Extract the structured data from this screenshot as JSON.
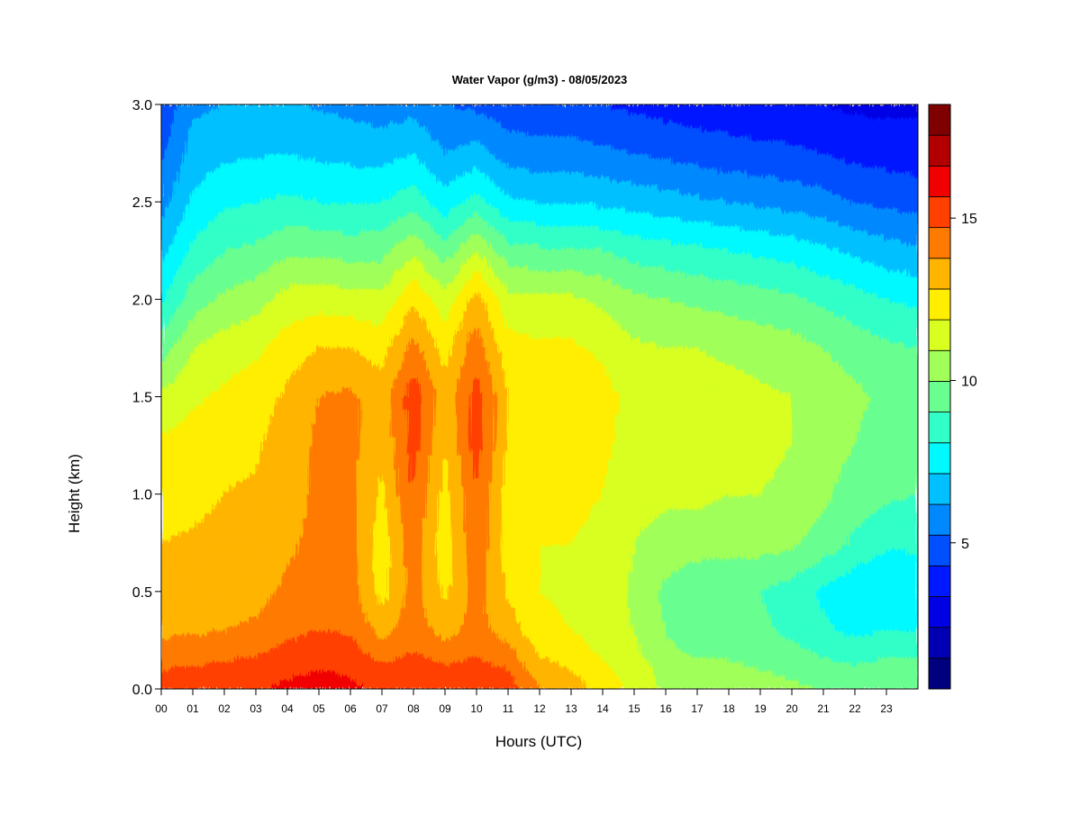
{
  "chart_data": {
    "type": "heatmap",
    "title": "Water Vapor (g/m3) - 08/05/2023",
    "xlabel": "Hours (UTC)",
    "ylabel": "Height (km)",
    "xlim": [
      0,
      24
    ],
    "ylim": [
      0,
      3.0
    ],
    "x_ticks": [
      "00",
      "01",
      "02",
      "03",
      "04",
      "05",
      "06",
      "07",
      "08",
      "09",
      "10",
      "11",
      "12",
      "13",
      "14",
      "15",
      "16",
      "17",
      "18",
      "19",
      "20",
      "21",
      "22",
      "23"
    ],
    "y_ticks": [
      "0.0",
      "0.5",
      "1.0",
      "1.5",
      "2.0",
      "2.5",
      "3.0"
    ],
    "colorbar": {
      "min": 1,
      "max": 18,
      "ticks": [
        "5",
        "10",
        "15"
      ],
      "levels": [
        1,
        2,
        3,
        4,
        5,
        6,
        7,
        8,
        9,
        10,
        11,
        12,
        13,
        14,
        15,
        16,
        17,
        18
      ],
      "colors": [
        "#00007f",
        "#0000b2",
        "#0000e5",
        "#0018ff",
        "#0050ff",
        "#0088ff",
        "#00c0ff",
        "#00f8ff",
        "#30ffc8",
        "#68ff90",
        "#a0ff58",
        "#d8ff20",
        "#ffee00",
        "#ffb400",
        "#ff7a00",
        "#ff4000",
        "#f00000",
        "#b20000",
        "#7f0000"
      ]
    },
    "grid": false,
    "legend": "colorbar-right",
    "x_hours": [
      0,
      1,
      2,
      3,
      4,
      5,
      6,
      7,
      8,
      9,
      10,
      11,
      12,
      13,
      14,
      15,
      16,
      17,
      18,
      19,
      20,
      21,
      22,
      23,
      24
    ],
    "y_heights_km": [
      0,
      0.1,
      0.2,
      0.3,
      0.5,
      0.75,
      1.0,
      1.25,
      1.5,
      1.75,
      2.0,
      2.25,
      2.5,
      2.75,
      3.0
    ],
    "values_g_m3": [
      [
        16.0,
        15.0,
        14.3,
        13.8,
        13.2,
        13.0,
        12.6,
        12.2,
        11.2,
        9.5,
        7.8,
        6.6,
        5.6,
        4.8,
        4.2
      ],
      [
        15.8,
        15.1,
        14.4,
        13.9,
        13.4,
        13.1,
        12.8,
        12.5,
        11.8,
        11.0,
        9.5,
        8.2,
        7.2,
        6.4,
        5.8
      ],
      [
        15.9,
        15.3,
        14.6,
        14.0,
        13.5,
        13.2,
        13.0,
        12.8,
        12.2,
        11.5,
        10.2,
        9.0,
        7.8,
        6.8,
        6.0
      ],
      [
        15.9,
        15.4,
        14.8,
        14.2,
        13.6,
        13.3,
        13.1,
        12.9,
        12.5,
        11.8,
        10.6,
        9.2,
        8.0,
        6.9,
        6.0
      ],
      [
        16.2,
        15.8,
        15.2,
        14.8,
        14.2,
        13.8,
        13.6,
        13.4,
        13.2,
        12.5,
        11.4,
        9.8,
        8.2,
        7.0,
        6.1
      ],
      [
        16.3,
        16.0,
        15.5,
        15.0,
        14.6,
        14.3,
        14.2,
        14.2,
        14.0,
        13.0,
        11.6,
        9.8,
        8.0,
        6.8,
        5.9
      ],
      [
        16.2,
        15.9,
        15.4,
        14.9,
        14.5,
        14.3,
        14.3,
        14.3,
        14.2,
        13.0,
        11.4,
        9.6,
        7.9,
        6.7,
        5.7
      ],
      [
        15.8,
        15.2,
        14.4,
        13.6,
        12.6,
        12.4,
        12.8,
        13.2,
        13.4,
        12.6,
        11.3,
        9.7,
        8.0,
        6.6,
        5.5
      ],
      [
        16.0,
        15.6,
        15.0,
        14.6,
        14.4,
        14.6,
        15.0,
        15.4,
        15.6,
        14.4,
        12.8,
        10.8,
        8.6,
        7.0,
        5.6
      ],
      [
        15.8,
        15.2,
        14.4,
        13.6,
        12.8,
        12.4,
        12.6,
        13.0,
        13.4,
        12.6,
        11.4,
        9.4,
        7.4,
        6.0,
        5.0
      ],
      [
        16.0,
        15.4,
        14.8,
        14.4,
        14.4,
        14.8,
        15.0,
        15.4,
        15.4,
        14.6,
        13.4,
        11.0,
        8.4,
        6.4,
        4.8
      ],
      [
        15.6,
        15.0,
        14.2,
        13.6,
        12.8,
        12.6,
        12.6,
        12.9,
        13.0,
        12.4,
        11.3,
        9.4,
        7.2,
        5.6,
        4.4
      ],
      [
        14.0,
        13.4,
        12.8,
        12.2,
        12.0,
        12.0,
        12.2,
        12.6,
        12.8,
        12.2,
        11.2,
        9.2,
        7.0,
        5.4,
        4.2
      ],
      [
        13.6,
        13.0,
        12.4,
        12.0,
        11.9,
        12.0,
        12.2,
        12.6,
        12.8,
        12.2,
        11.2,
        9.2,
        7.0,
        5.4,
        4.2
      ],
      [
        12.6,
        12.2,
        11.8,
        11.6,
        11.6,
        11.8,
        12.0,
        12.2,
        12.4,
        11.8,
        10.8,
        9.0,
        6.8,
        5.2,
        4.0
      ],
      [
        11.8,
        11.6,
        11.2,
        11.0,
        10.8,
        11.0,
        11.4,
        11.6,
        11.6,
        11.2,
        10.2,
        8.6,
        6.6,
        5.0,
        3.8
      ],
      [
        10.8,
        10.6,
        10.2,
        10.0,
        9.8,
        10.6,
        11.2,
        11.4,
        11.4,
        11.0,
        10.0,
        8.4,
        6.4,
        4.8,
        3.6
      ],
      [
        10.6,
        10.2,
        9.8,
        9.4,
        9.0,
        10.6,
        11.2,
        11.4,
        11.5,
        11.0,
        9.8,
        8.2,
        6.2,
        4.6,
        3.4
      ],
      [
        10.6,
        10.2,
        9.8,
        9.4,
        9.2,
        10.4,
        11.0,
        11.2,
        11.4,
        10.8,
        9.6,
        8.0,
        6.0,
        4.4,
        3.4
      ],
      [
        10.4,
        10.0,
        9.6,
        9.2,
        9.0,
        10.4,
        11.0,
        11.2,
        11.2,
        10.6,
        9.4,
        7.8,
        5.8,
        4.3,
        3.2
      ],
      [
        10.2,
        9.8,
        9.2,
        8.8,
        8.6,
        10.2,
        10.8,
        11.0,
        11.0,
        10.4,
        9.2,
        7.6,
        5.6,
        4.2,
        3.2
      ],
      [
        10.0,
        9.4,
        8.8,
        8.2,
        7.8,
        9.6,
        10.2,
        10.4,
        10.6,
        10.0,
        8.8,
        7.2,
        5.4,
        4.0,
        3.0
      ],
      [
        10.0,
        9.2,
        8.4,
        7.8,
        7.2,
        8.8,
        9.6,
        10.0,
        10.2,
        9.6,
        8.4,
        6.8,
        5.0,
        3.7,
        2.8
      ],
      [
        10.0,
        9.4,
        8.8,
        8.0,
        7.0,
        8.2,
        9.2,
        9.6,
        9.8,
        9.2,
        8.0,
        6.4,
        4.8,
        3.6,
        2.8
      ],
      [
        10.0,
        9.4,
        8.8,
        8.0,
        7.2,
        8.2,
        9.0,
        9.4,
        9.6,
        9.0,
        7.8,
        6.2,
        4.6,
        3.5,
        2.8
      ]
    ]
  }
}
